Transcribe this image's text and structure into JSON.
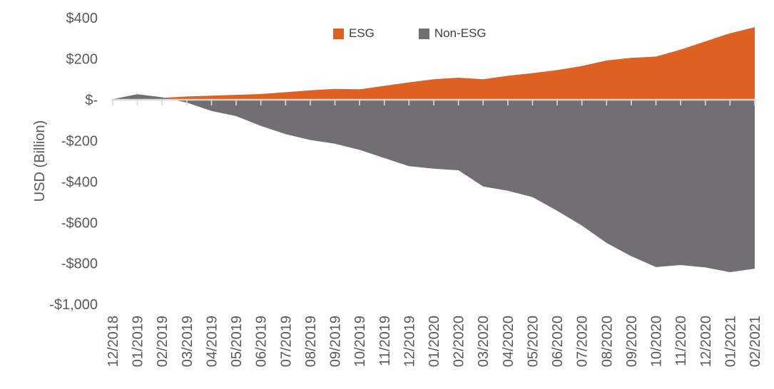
{
  "chart_data": {
    "type": "area",
    "title": "",
    "xlabel": "",
    "ylabel": "USD (Billion)",
    "ylim": [
      -1000,
      400
    ],
    "grid": false,
    "legend_position": "top-center",
    "baseline": 0,
    "categories": [
      "12/2018",
      "01/2019",
      "02/2019",
      "03/2019",
      "04/2019",
      "05/2019",
      "06/2019",
      "07/2019",
      "08/2019",
      "09/2019",
      "10/2019",
      "11/2019",
      "12/2019",
      "01/2020",
      "02/2020",
      "03/2020",
      "04/2020",
      "05/2020",
      "06/2020",
      "07/2020",
      "08/2020",
      "09/2020",
      "10/2020",
      "11/2020",
      "12/2020",
      "01/2021",
      "02/2021"
    ],
    "series": [
      {
        "name": "ESG",
        "color": "#DE6121",
        "values": [
          2,
          5,
          9,
          16,
          20,
          24,
          28,
          37,
          46,
          53,
          51,
          68,
          85,
          100,
          108,
          100,
          117,
          130,
          145,
          165,
          192,
          205,
          211,
          245,
          285,
          325,
          355
        ]
      },
      {
        "name": "Non-ESG",
        "color": "#716F73",
        "values": [
          3,
          27,
          12,
          -14,
          -55,
          -80,
          -128,
          -168,
          -197,
          -215,
          -245,
          -285,
          -325,
          -337,
          -345,
          -424,
          -445,
          -476,
          -543,
          -615,
          -700,
          -765,
          -818,
          -808,
          -820,
          -843,
          -826
        ]
      }
    ],
    "y_ticks": [
      {
        "label": "$400",
        "value": 400
      },
      {
        "label": "$200",
        "value": 200
      },
      {
        "label": "$-",
        "value": 0
      },
      {
        "label": "-$200",
        "value": -200
      },
      {
        "label": "-$400",
        "value": -400
      },
      {
        "label": "-$600",
        "value": -600
      },
      {
        "label": "-$800",
        "value": -800
      },
      {
        "label": "-$1,000",
        "value": -1000
      }
    ],
    "axis_line_color": "#D9D9D9",
    "tick_color": "#D9D9D9",
    "label_color": "#595959",
    "legend_text_color": "#404040"
  }
}
